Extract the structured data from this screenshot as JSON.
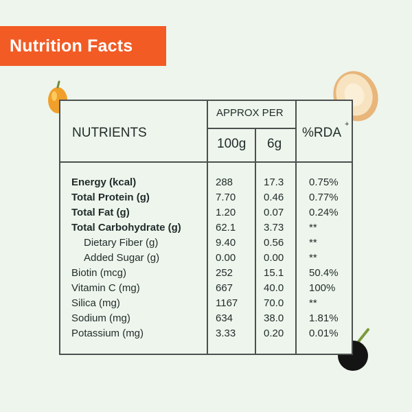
{
  "banner": {
    "title": "Nutrition Facts"
  },
  "table": {
    "header": {
      "nutrients": "NUTRIENTS",
      "approx_per": "APPROX PER",
      "col_100g": "100g",
      "col_6g": "6g",
      "rda": "%RDA",
      "rda_mark": "+"
    },
    "rows": [
      {
        "name": "Energy (kcal)",
        "v100": "288",
        "v6": "17.3",
        "rda": "0.75%"
      },
      {
        "name": "Total Protein (g)",
        "v100": "7.70",
        "v6": "0.46",
        "rda": "0.77%"
      },
      {
        "name": "Total Fat (g)",
        "v100": "1.20",
        "v6": "0.07",
        "rda": "0.24%"
      },
      {
        "name": "Total Carbohydrate (g)",
        "v100": "62.1",
        "v6": "3.73",
        "rda": "**"
      },
      {
        "name": "Dietary Fiber (g)",
        "v100": "9.40",
        "v6": "0.56",
        "rda": "**"
      },
      {
        "name": "Added Sugar (g)",
        "v100": "0.00",
        "v6": "0.00",
        "rda": "**"
      },
      {
        "name": "Biotin (mcg)",
        "v100": "252",
        "v6": "15.1",
        "rda": "50.4%"
      },
      {
        "name": "Vitamin C (mg)",
        "v100": "667",
        "v6": "40.0",
        "rda": "100%"
      },
      {
        "name": "Silica (mg)",
        "v100": "1167",
        "v6": "70.0",
        "rda": "**"
      },
      {
        "name": "Sodium (mg)",
        "v100": "634",
        "v6": "38.0",
        "rda": "1.81%"
      },
      {
        "name": "Potassium (mg)",
        "v100": "3.33",
        "v6": "0.20",
        "rda": "0.01%"
      }
    ]
  },
  "colors": {
    "banner": "#f25b24",
    "background": "#eef5ec",
    "border": "#4a4f4f"
  },
  "icons": {
    "fruit1": "amla-fruit-icon",
    "fruit2": "root-slice-icon",
    "fruit3": "acai-berry-icon"
  }
}
